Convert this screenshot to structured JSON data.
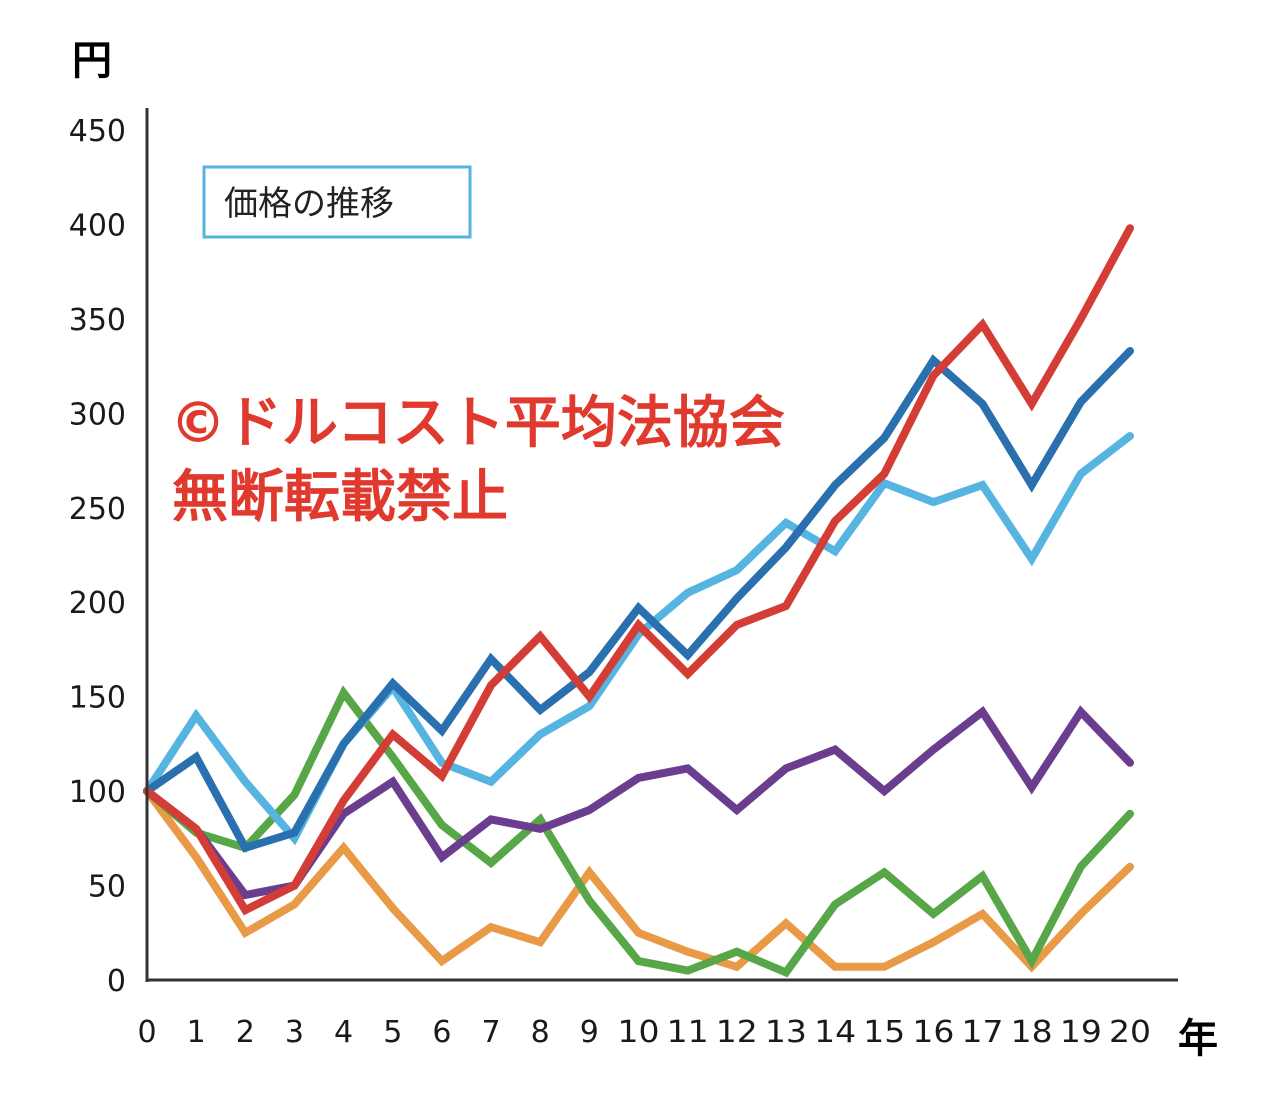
{
  "chart_data": {
    "type": "line",
    "title": "価格の推移",
    "ylabel": "円",
    "xlabel": "年",
    "x": [
      0,
      1,
      2,
      3,
      4,
      5,
      6,
      7,
      8,
      9,
      10,
      11,
      12,
      13,
      14,
      15,
      16,
      17,
      18,
      19,
      20
    ],
    "xticks": [
      "0",
      "1",
      "2",
      "3",
      "4",
      "5",
      "6",
      "7",
      "8",
      "9",
      "10",
      "11",
      "12",
      "13",
      "14",
      "15",
      "16",
      "17",
      "18",
      "19",
      "20"
    ],
    "yticks": [
      "0",
      "50",
      "100",
      "150",
      "200",
      "250",
      "300",
      "350",
      "400",
      "450"
    ],
    "ylim": [
      0,
      450
    ],
    "xlim": [
      0,
      20
    ],
    "grid": false,
    "series": [
      {
        "color": "#e89a47",
        "values": [
          100,
          65,
          25,
          40,
          70,
          38,
          10,
          28,
          20,
          57,
          25,
          15,
          7,
          30,
          7,
          7,
          20,
          35,
          7,
          35,
          60
        ]
      },
      {
        "color": "#57a647",
        "values": [
          100,
          78,
          70,
          98,
          152,
          118,
          82,
          62,
          85,
          42,
          10,
          5,
          15,
          4,
          40,
          57,
          35,
          55,
          10,
          60,
          88
        ]
      },
      {
        "color": "#6a3d8f",
        "values": [
          100,
          80,
          45,
          50,
          88,
          105,
          65,
          85,
          80,
          90,
          107,
          112,
          90,
          112,
          122,
          100,
          122,
          142,
          102,
          142,
          115
        ]
      },
      {
        "color": "#56b4e0",
        "values": [
          100,
          140,
          105,
          75,
          125,
          155,
          115,
          105,
          130,
          145,
          183,
          205,
          217,
          242,
          227,
          263,
          253,
          262,
          223,
          268,
          288
        ]
      },
      {
        "color": "#2a6fae",
        "values": [
          100,
          118,
          70,
          78,
          125,
          157,
          132,
          170,
          143,
          163,
          197,
          172,
          202,
          229,
          262,
          287,
          328,
          305,
          262,
          306,
          333
        ]
      },
      {
        "color": "#d43d36",
        "values": [
          100,
          80,
          37,
          50,
          95,
          130,
          108,
          156,
          182,
          150,
          188,
          162,
          188,
          198,
          243,
          268,
          320,
          347,
          305,
          350,
          398
        ]
      }
    ]
  },
  "watermark": {
    "line1": "©ドルコスト平均法協会",
    "line2": "無断転載禁止",
    "color": "#e03a2f"
  },
  "legend": {
    "border_color": "#56b4e0"
  },
  "axis_color": "#333333"
}
